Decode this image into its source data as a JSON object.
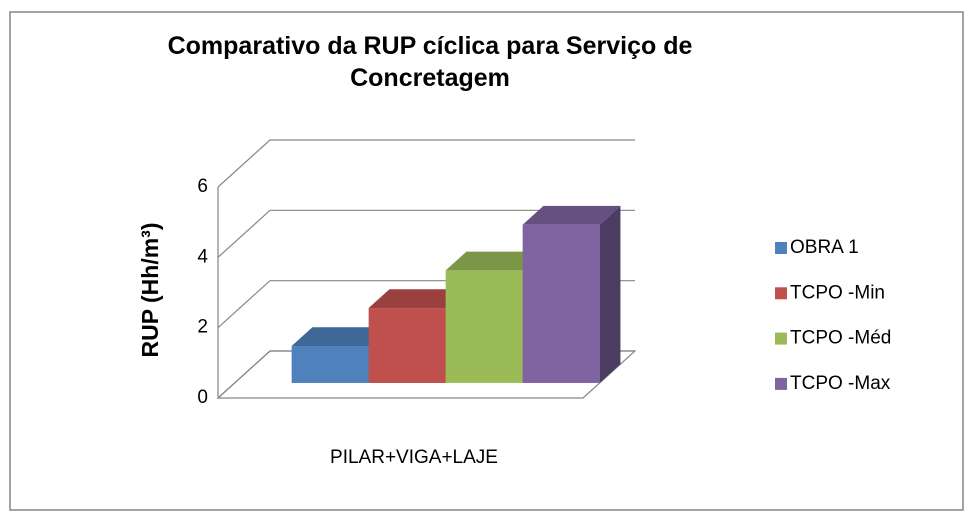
{
  "chart_data": {
    "type": "bar3d",
    "title": "Comparativo da RUP cíclica para Serviço de Concretagem",
    "y_label": "RUP (Hh/m³)",
    "categories": [
      "PILAR+VIGA+LAJE"
    ],
    "series": [
      {
        "name": "OBRA 1",
        "color": "#4f81bd",
        "values": [
          1.05
        ]
      },
      {
        "name": "TCPO -Min",
        "color": "#c0504d",
        "values": [
          2.13
        ]
      },
      {
        "name": "TCPO -Méd",
        "color": "#9bbb59",
        "values": [
          3.2
        ]
      },
      {
        "name": "TCPO -Max",
        "color": "#8064a2",
        "values": [
          4.5
        ]
      }
    ],
    "ylim": [
      0,
      6
    ],
    "yticks": [
      0,
      2,
      4,
      6
    ],
    "grid": true,
    "legend": "right"
  }
}
